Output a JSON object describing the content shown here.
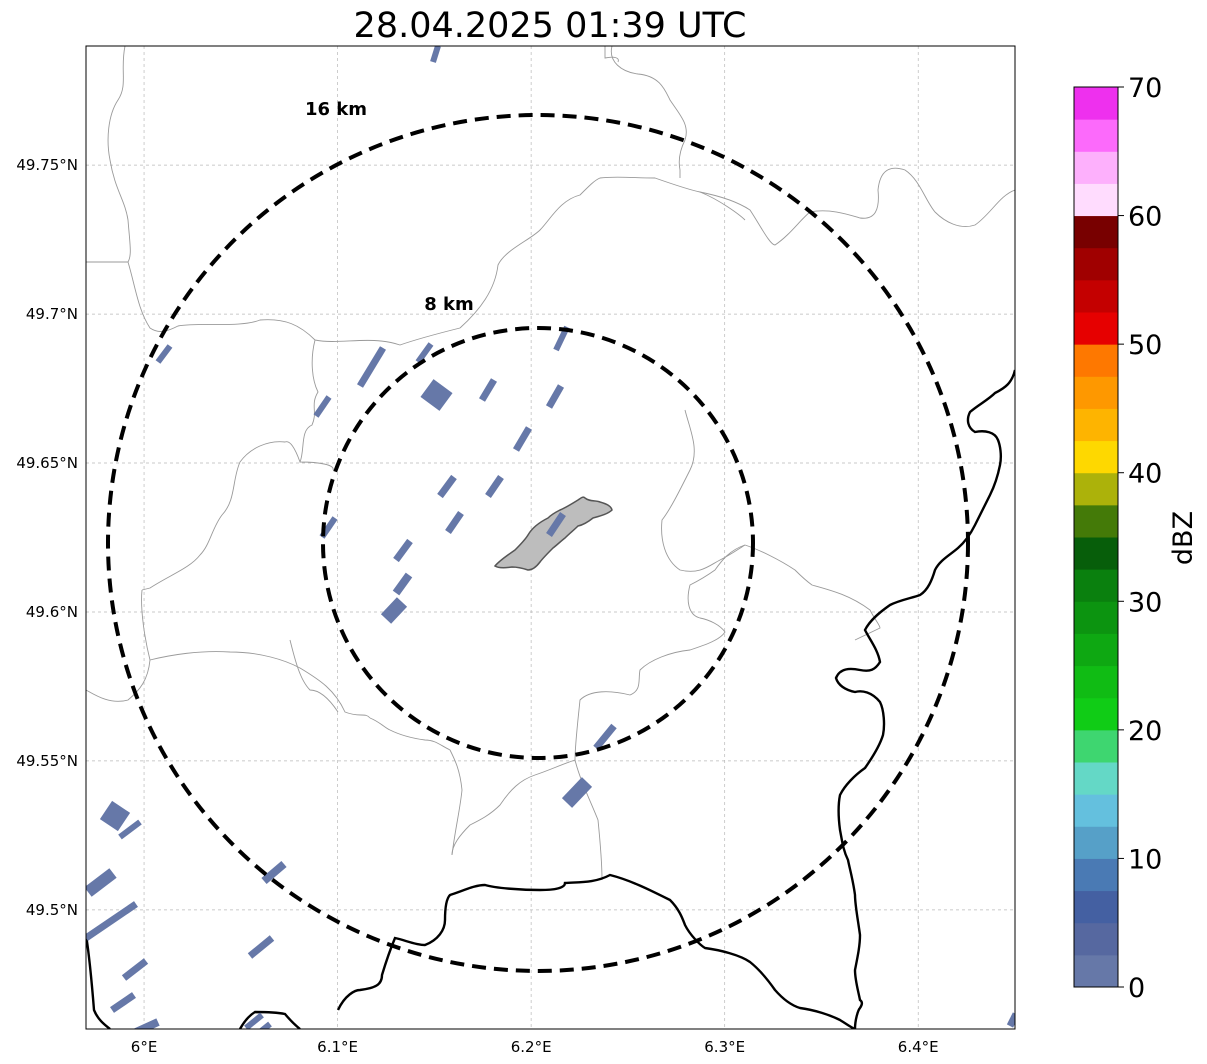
{
  "title": "28.04.2025 01:39 UTC",
  "map": {
    "lon_range": [
      5.97,
      6.45
    ],
    "lat_range": [
      49.46,
      49.79
    ],
    "lon_ticks": [
      {
        "value": 6.0,
        "label": "6°E"
      },
      {
        "value": 6.1,
        "label": "6.1°E"
      },
      {
        "value": 6.2,
        "label": "6.2°E"
      },
      {
        "value": 6.3,
        "label": "6.3°E"
      },
      {
        "value": 6.4,
        "label": "6.4°E"
      }
    ],
    "lat_ticks": [
      {
        "value": 49.75,
        "label": "49.75°N"
      },
      {
        "value": 49.7,
        "label": "49.7°N"
      },
      {
        "value": 49.65,
        "label": "49.65°N"
      },
      {
        "value": 49.6,
        "label": "49.6°N"
      },
      {
        "value": 49.55,
        "label": "49.55°N"
      },
      {
        "value": 49.5,
        "label": "49.5°N"
      }
    ],
    "gridlines": true,
    "center": {
      "lon": 6.202,
      "lat": 49.623
    },
    "rings": [
      {
        "radius_km": 8,
        "label": "8 km"
      },
      {
        "radius_km": 16,
        "label": "16 km"
      }
    ],
    "echo_color": "#6678a8",
    "city_fill": "#bdbdbd"
  },
  "colorbar": {
    "label": "dBZ",
    "min": 0,
    "max": 70,
    "ticks": [
      0,
      10,
      20,
      30,
      40,
      50,
      60,
      70
    ],
    "colors": [
      "#6678a8",
      "#5668a0",
      "#4460a2",
      "#4a7ab4",
      "#56a0c8",
      "#64c0de",
      "#64d8c6",
      "#3ed670",
      "#10cc16",
      "#10bc14",
      "#0ea812",
      "#0c9410",
      "#0a800e",
      "#075e0a",
      "#447a08",
      "#acb20a",
      "#fed800",
      "#feb400",
      "#fe9800",
      "#fe7800",
      "#e60000",
      "#c40000",
      "#a00000",
      "#780000",
      "#ffdcfe",
      "#fdb0fc",
      "#fc6afb",
      "#ee30ee"
    ]
  }
}
